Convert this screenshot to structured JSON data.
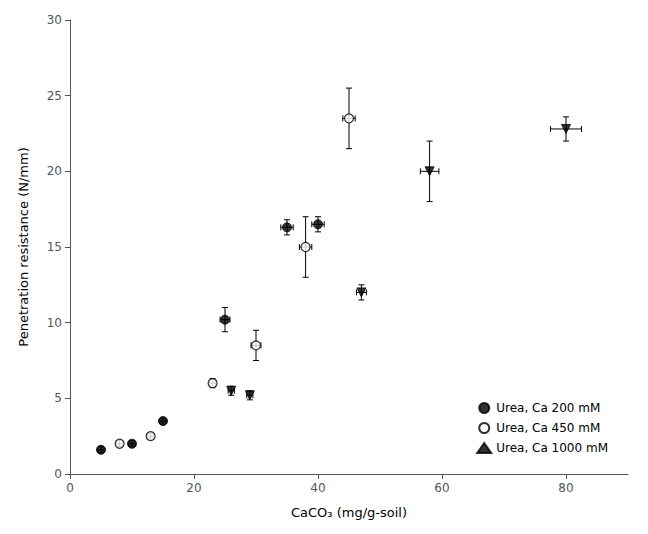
{
  "chart_data": {
    "type": "scatter",
    "xlabel": "CaCO₃ (mg/g-soil)",
    "ylabel": "Penetration resistance (N/mm)",
    "series": [
      {
        "name": "Urea, Ca 200 mM",
        "color": "#000000",
        "marker": "circle",
        "x": [
          5,
          10,
          15,
          25,
          35,
          40
        ],
        "values": [
          1.6,
          2.0,
          3.5,
          10.2,
          16.3,
          16.5
        ],
        "xerr": [
          0.5,
          0.5,
          0.5,
          0.8,
          1.0,
          1.0
        ],
        "yerr": [
          0.2,
          0.2,
          0.2,
          0.8,
          0.5,
          0.5
        ]
      },
      {
        "name": "Urea, Ca 450 mM",
        "color": "#000000",
        "marker": "open_circle",
        "x": [
          8,
          13,
          23,
          30,
          38,
          45
        ],
        "values": [
          2.0,
          2.5,
          6.0,
          8.5,
          15.0,
          23.5
        ],
        "xerr": [
          0.5,
          0.5,
          0.5,
          0.8,
          1.0,
          1.0
        ],
        "yerr": [
          0.2,
          0.2,
          0.3,
          1.0,
          2.0,
          2.0
        ]
      },
      {
        "name": "Urea, Ca 1000 mM",
        "color": "#000000",
        "marker": "triangle_down",
        "x": [
          26,
          29,
          47,
          58,
          80
        ],
        "values": [
          5.5,
          5.2,
          12.0,
          20.0,
          22.8
        ],
        "xerr": [
          0.5,
          0.5,
          0.8,
          1.5,
          2.5
        ],
        "yerr": [
          0.3,
          0.3,
          0.5,
          2.0,
          0.8
        ]
      }
    ],
    "xlim": [
      0,
      90
    ],
    "ylim": [
      0,
      30
    ],
    "xticks": [
      0,
      20,
      40,
      60,
      80
    ],
    "yticks": [
      0,
      5,
      10,
      15,
      20,
      25,
      30
    ],
    "legend": "lower right",
    "grid": false
  }
}
